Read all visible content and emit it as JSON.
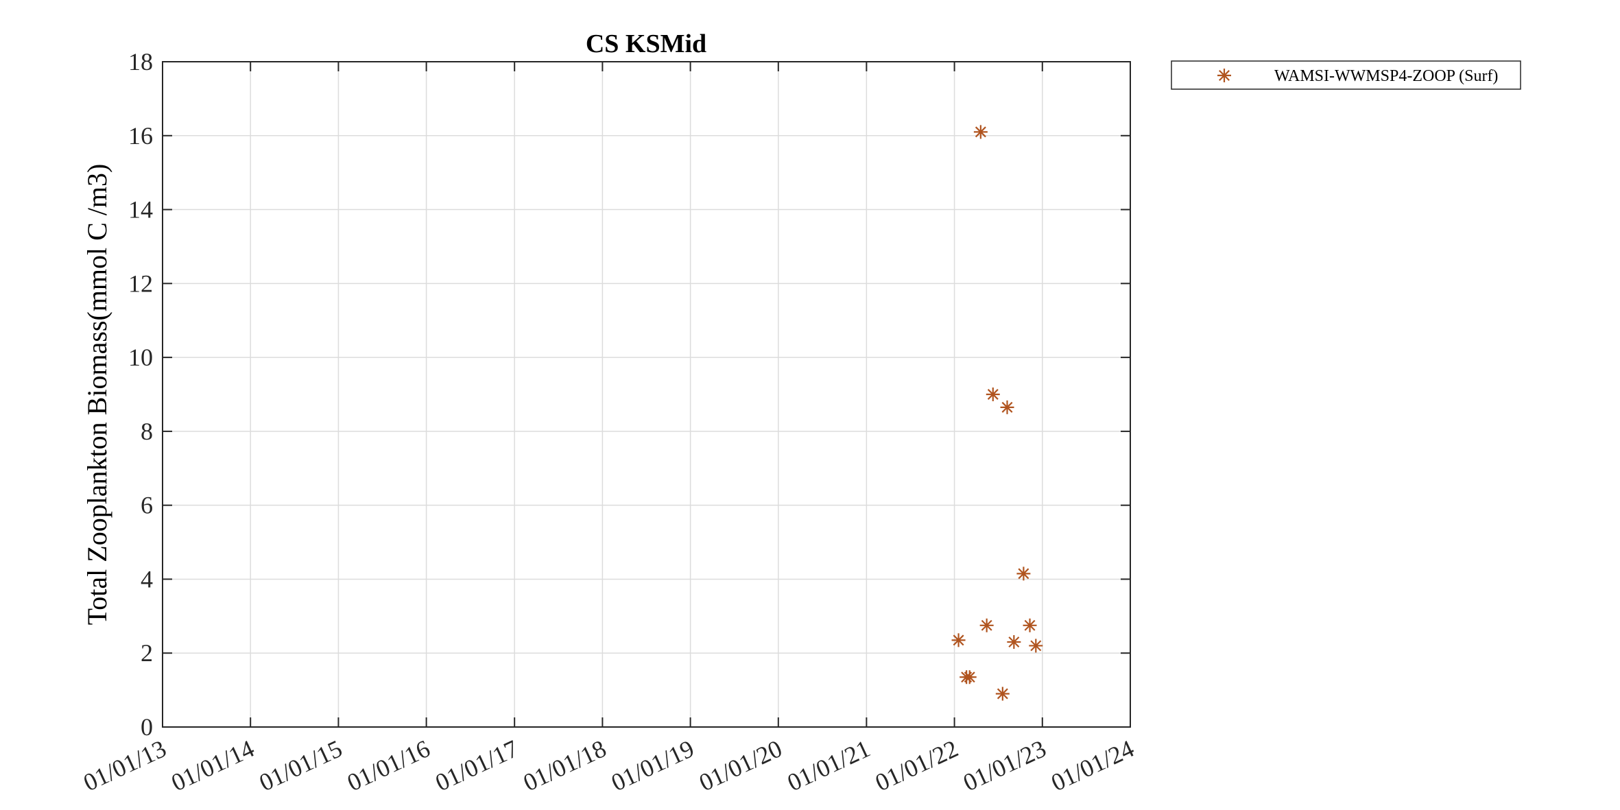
{
  "chart_data": {
    "type": "scatter",
    "title": "CS KSMid",
    "ylabel": "Total Zooplankton Biomass(mmol C /m3)",
    "xlabel": "",
    "x_axis_type": "date",
    "xlim": [
      "2013-01-01",
      "2024-01-01"
    ],
    "ylim": [
      0,
      18
    ],
    "xticks": [
      "2013-01-01",
      "2014-01-01",
      "2015-01-01",
      "2016-01-01",
      "2017-01-01",
      "2018-01-01",
      "2019-01-01",
      "2020-01-01",
      "2021-01-01",
      "2022-01-01",
      "2023-01-01",
      "2024-01-01"
    ],
    "xtick_labels": [
      "01/01/13",
      "01/01/14",
      "01/01/15",
      "01/01/16",
      "01/01/17",
      "01/01/18",
      "01/01/19",
      "01/01/20",
      "01/01/21",
      "01/01/22",
      "01/01/23",
      "01/01/24"
    ],
    "yticks": [
      0,
      2,
      4,
      6,
      8,
      10,
      12,
      14,
      16,
      18
    ],
    "ytick_labels": [
      "0",
      "2",
      "4",
      "6",
      "8",
      "10",
      "12",
      "14",
      "16",
      "18"
    ],
    "grid": true,
    "legend_position": "outside top-right",
    "series": [
      {
        "name": "WAMSI-WWMSP4-ZOOP (Surf)",
        "color": "#b0541f",
        "marker": "asterisk",
        "points": [
          {
            "x": "2022-01-18",
            "y": 2.35
          },
          {
            "x": "2022-02-20",
            "y": 1.35
          },
          {
            "x": "2022-03-05",
            "y": 1.35
          },
          {
            "x": "2022-04-20",
            "y": 16.1
          },
          {
            "x": "2022-05-15",
            "y": 2.75
          },
          {
            "x": "2022-06-10",
            "y": 9.0
          },
          {
            "x": "2022-07-20",
            "y": 0.9
          },
          {
            "x": "2022-08-08",
            "y": 8.65
          },
          {
            "x": "2022-09-05",
            "y": 2.3
          },
          {
            "x": "2022-10-15",
            "y": 4.15
          },
          {
            "x": "2022-11-10",
            "y": 2.75
          },
          {
            "x": "2022-12-05",
            "y": 2.2
          }
        ]
      }
    ]
  }
}
